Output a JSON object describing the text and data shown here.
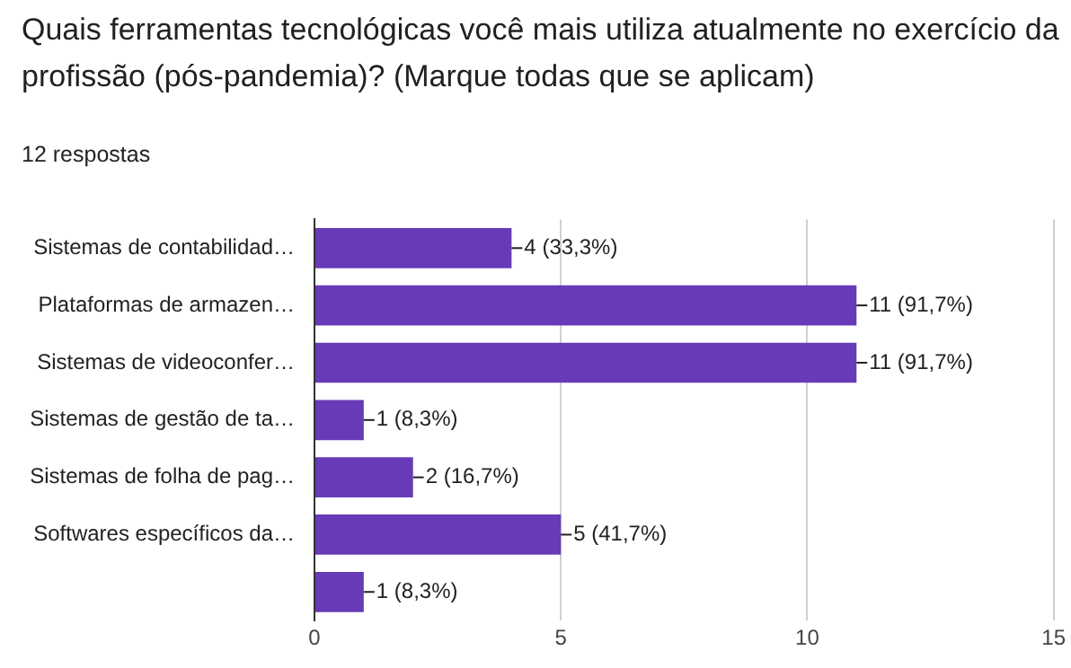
{
  "chart_data": {
    "type": "bar",
    "orientation": "horizontal",
    "title": "Quais ferramentas tecnológicas você mais utiliza atualmente no exercício da profissão (pós-pandemia)? (Marque todas que se aplicam)",
    "subtitle": "12 respostas",
    "categories": [
      "Sistemas de contabilidad…",
      "Plataformas de armazen…",
      "Sistemas de videoconfer…",
      "Sistemas de gestão de ta…",
      "Sistemas de folha de pag…",
      "Softwares específicos da…",
      null
    ],
    "values": [
      4,
      11,
      11,
      1,
      2,
      5,
      1
    ],
    "value_labels": [
      "4 (33,3%)",
      "11 (91,7%)",
      "11 (91,7%)",
      "1 (8,3%)",
      "2 (16,7%)",
      "5 (41,7%)",
      "1 (8,3%)"
    ],
    "color": "#673ab7",
    "xlim": [
      0,
      15
    ],
    "xticks": [
      0,
      5,
      10,
      15
    ],
    "grid": "x",
    "legend": false
  }
}
